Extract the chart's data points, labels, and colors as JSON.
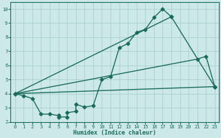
{
  "xlabel": "Humidex (Indice chaleur)",
  "xlim": [
    -0.5,
    23.5
  ],
  "ylim": [
    2,
    10.5
  ],
  "xticks": [
    0,
    1,
    2,
    3,
    4,
    5,
    6,
    7,
    8,
    9,
    10,
    11,
    12,
    13,
    14,
    15,
    16,
    17,
    18,
    19,
    20,
    21,
    22,
    23
  ],
  "yticks": [
    2,
    3,
    4,
    5,
    6,
    7,
    8,
    9,
    10
  ],
  "bg_color": "#cce8e8",
  "grid_color": "#aacece",
  "line_color": "#1a6b5a",
  "line1_x": [
    0,
    1,
    2,
    3,
    4,
    5,
    5,
    6,
    6,
    7,
    7,
    8,
    9,
    10,
    11,
    12,
    13,
    14,
    15,
    16,
    17,
    18
  ],
  "line1_y": [
    4.0,
    3.85,
    3.65,
    2.55,
    2.55,
    2.45,
    2.35,
    2.35,
    2.65,
    2.75,
    3.25,
    3.05,
    3.15,
    5.0,
    5.2,
    7.25,
    7.55,
    8.35,
    8.55,
    9.4,
    10.0,
    9.45
  ],
  "line2_x": [
    0,
    18,
    23
  ],
  "line2_y": [
    4.0,
    9.45,
    4.5
  ],
  "line3_x": [
    0,
    21,
    22,
    23
  ],
  "line3_y": [
    4.0,
    6.45,
    6.65,
    4.5
  ],
  "line4_x": [
    0,
    23
  ],
  "line4_y": [
    4.0,
    4.5
  ],
  "marker": "D",
  "marker_size": 2.5,
  "line_width": 1.0
}
